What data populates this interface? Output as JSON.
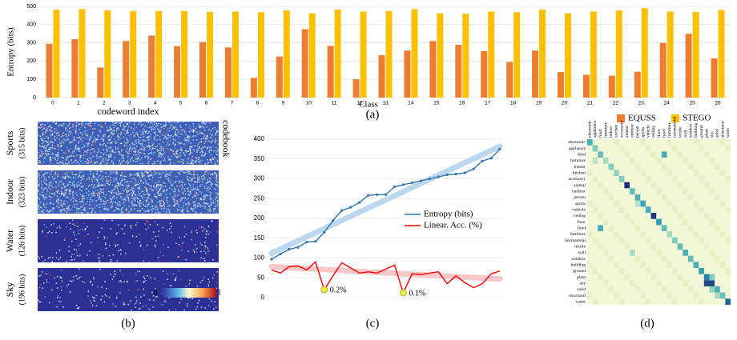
{
  "chart_data": [
    {
      "type": "bar",
      "caption": "(a)",
      "ylabel": "Entropy (bits)",
      "xlabel": "Class",
      "categories": [
        "0",
        "1",
        "2",
        "3",
        "4",
        "5",
        "6",
        "7",
        "8",
        "9",
        "10",
        "11",
        "12",
        "13",
        "14",
        "15",
        "16",
        "17",
        "18",
        "19",
        "20",
        "21",
        "22",
        "23",
        "24",
        "25",
        "26"
      ],
      "series": [
        {
          "name": "EQUSS",
          "color": "#ed7d31",
          "values": [
            295,
            320,
            165,
            310,
            340,
            282,
            305,
            275,
            108,
            225,
            375,
            283,
            100,
            232,
            258,
            310,
            290,
            255,
            195,
            258,
            140,
            125,
            120,
            142,
            300,
            350,
            215
          ]
        },
        {
          "name": "STEGO",
          "color": "#ffc000",
          "values": [
            482,
            485,
            478,
            475,
            475,
            475,
            470,
            472,
            468,
            478,
            462,
            482,
            472,
            475,
            485,
            462,
            460,
            472,
            468,
            482,
            462,
            472,
            478,
            490,
            472,
            470,
            480
          ]
        }
      ],
      "ylim": [
        0,
        500
      ],
      "yticks": [
        0,
        100,
        200,
        300,
        400,
        500
      ],
      "grid": true,
      "legend": "bottom-right"
    },
    {
      "type": "codeword-maps",
      "caption": "(b)",
      "title": "codeword index",
      "side_label": "codebook",
      "rows": [
        {
          "name": "Sports",
          "bits": "(315 bits)"
        },
        {
          "name": "Indoor",
          "bits": "(323 bits)"
        },
        {
          "name": "Water",
          "bits": "(126 bits)"
        },
        {
          "name": "Sky",
          "bits": "(196 bits)"
        }
      ],
      "colorbar_ticks": [
        0,
        1
      ]
    },
    {
      "type": "line",
      "caption": "(c)",
      "series": [
        {
          "name": "Entropy (bits)",
          "color": "#2e75b6",
          "values": [
            97,
            110,
            122,
            127,
            140,
            142,
            165,
            195,
            220,
            228,
            240,
            258,
            260,
            260,
            280,
            285,
            290,
            295,
            300,
            305,
            310,
            312,
            315,
            325,
            345,
            352,
            375
          ]
        },
        {
          "name": "Linear. Acc. (%)",
          "color": "#ff0000",
          "values": [
            70,
            62,
            78,
            80,
            70,
            90,
            20,
            55,
            88,
            75,
            62,
            65,
            62,
            72,
            82,
            12,
            60,
            58,
            62,
            65,
            35,
            55,
            38,
            25,
            35,
            60,
            67
          ]
        }
      ],
      "annotations": [
        "0.2%",
        "0.1%"
      ],
      "ylim": [
        0,
        400
      ],
      "yticks": [
        0,
        50,
        100,
        150,
        200,
        250,
        300,
        350,
        400
      ],
      "grid": true,
      "legend": "center-right"
    },
    {
      "type": "matrix",
      "caption": "(d)",
      "labels": [
        "electronic",
        "appliance",
        "food",
        "furniture",
        "indoor",
        "kitchen",
        "accessory",
        "animal",
        "outdoor",
        "person",
        "sports",
        "vehicle",
        "ceiling",
        "floor",
        "food",
        "furniture",
        "rawmaterial",
        "textile",
        "wall",
        "window",
        "building",
        "ground",
        "plant",
        "sky",
        "solid",
        "structural",
        "water"
      ],
      "label_colors": [
        "#000000",
        "#8b0000",
        "#b8860b",
        "#b8a060",
        "#555599",
        "#8b008b",
        "#2e8b57",
        "#7b68ee",
        "#8b0000",
        "#cd5c5c",
        "#9acd32",
        "#6b8e23",
        "#800080",
        "#4169e1",
        "#b8860b",
        "#deb887",
        "#000000",
        "#8b4513",
        "#9acd32",
        "#90ee90",
        "#000080",
        "#8b4513",
        "#2e8b57",
        "#87ceeb",
        "#006400",
        "#a0522d",
        "#228b22"
      ],
      "diagonal": [
        0.5,
        0.3,
        0.4,
        0.2,
        0.3,
        0.25,
        0.3,
        1.0,
        0.4,
        0.5,
        0.55,
        0.5,
        0.95,
        0.6,
        0.4,
        0.2,
        0.3,
        0.4,
        0.5,
        0.4,
        0.5,
        0.6,
        0.7,
        0.9,
        0.5,
        0.4,
        0.8
      ],
      "off_diagonal": [
        [
          2,
          14,
          0.5
        ],
        [
          14,
          2,
          0.5
        ],
        [
          23,
          22,
          0.9
        ],
        [
          22,
          23,
          0.3
        ],
        [
          18,
          8,
          0.2
        ],
        [
          24,
          23,
          0.25
        ],
        [
          25,
          24,
          0.2
        ],
        [
          3,
          1,
          0.15
        ],
        [
          10,
          9,
          0.15
        ]
      ]
    }
  ]
}
